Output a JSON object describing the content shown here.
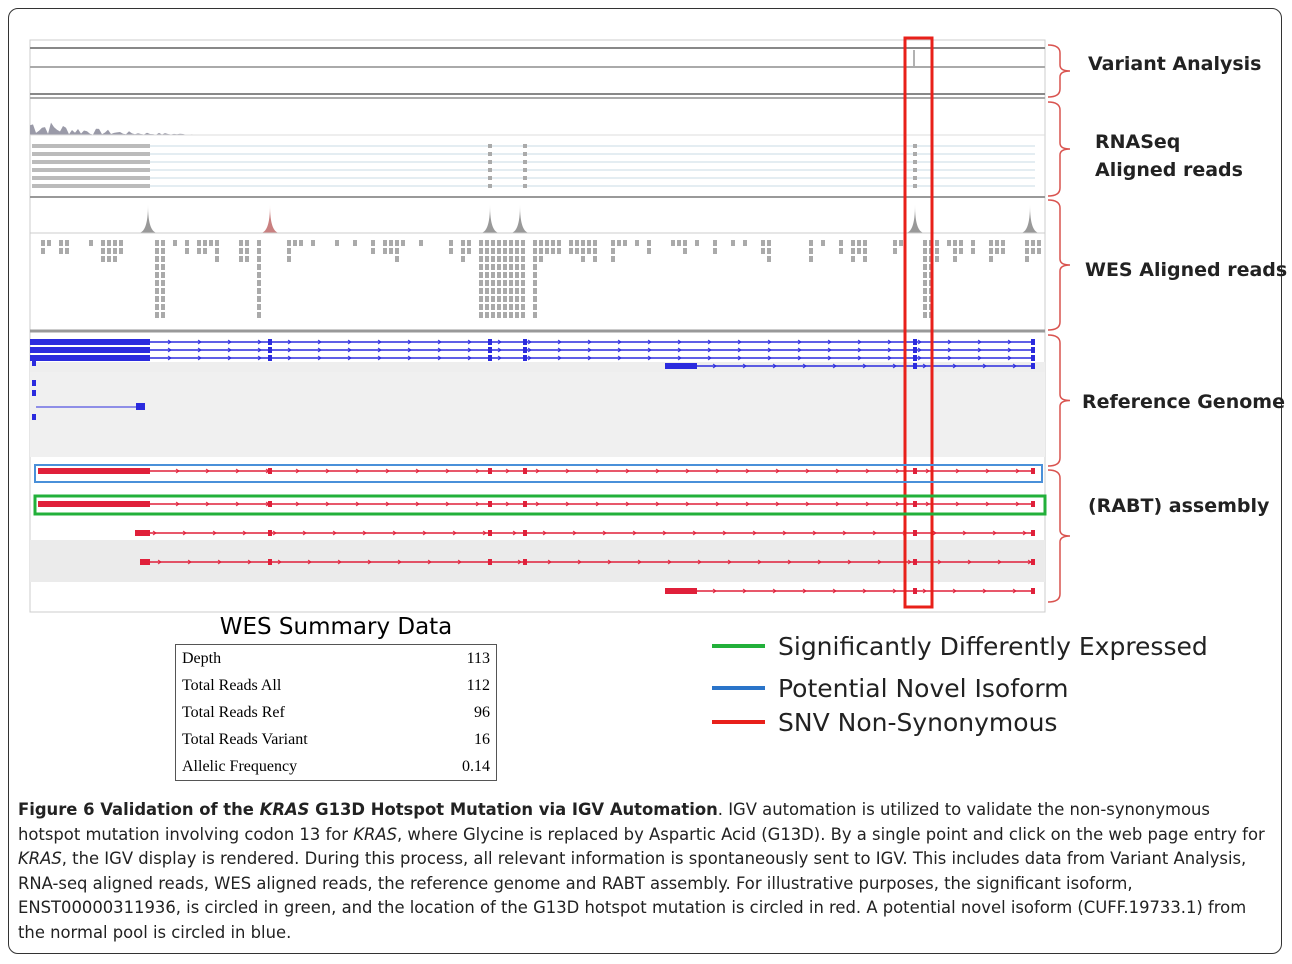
{
  "tracks": {
    "labels": [
      "Variant Analysis",
      "RNASeq",
      "Aligned reads",
      "WES Aligned reads",
      "Reference Genome",
      "(RABT) assembly"
    ]
  },
  "summary": {
    "title": "WES Summary Data",
    "rows": [
      [
        "Depth",
        "113"
      ],
      [
        "Total Reads All",
        "112"
      ],
      [
        "Total Reads Ref",
        "96"
      ],
      [
        "Total Reads Variant",
        "16"
      ],
      [
        "Allelic Frequency",
        "0.14"
      ]
    ]
  },
  "legend": [
    "Significantly Differently Expressed",
    "Potential Novel Isoform",
    "SNV Non-Synonymous"
  ],
  "caption": {
    "title": [
      "Figure 6 Validation of the ",
      "KRAS",
      " G13D Hotspot Mutation via IGV Automation"
    ],
    "body": [
      ". IGV automation is utilized to validate the non-synonymous hotspot mutation involving codon 13 for ",
      "KRAS",
      ", where Glycine is replaced by Aspartic Acid (G13D). By a single point and click on the web page entry for ",
      "KRAS",
      ", the IGV display is rendered. During this process, all relevant information is spontaneously sent to IGV. This includes data from Variant Analysis, RNA-seq aligned reads, WES aligned reads, the reference genome and RABT assembly. For illustrative purposes, the significant isoform, ENST00000311936, is circled in green, and the location of the G13D hotspot mutation is circled in red. A potential novel isoform (CUFF.19733.1) from the normal pool is circled in blue."
    ]
  }
}
